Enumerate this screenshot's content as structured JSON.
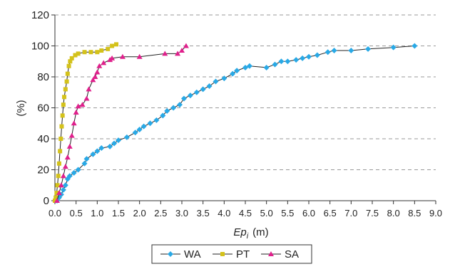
{
  "chart_data": {
    "type": "scatter",
    "xlabel": "Ep",
    "xlabel_sub": "i",
    "xlabel_unit": "(m)",
    "ylabel": "(%)",
    "xlim": [
      0,
      9
    ],
    "ylim": [
      0,
      120
    ],
    "xticks": [
      "0.0",
      "0.5",
      "1.0",
      "1.5",
      "2.0",
      "2.5",
      "3.0",
      "3.5",
      "4.0",
      "4.5",
      "5.0",
      "5.5",
      "6.0",
      "6.5",
      "7.0",
      "7.5",
      "8.0",
      "8.5",
      "9.0"
    ],
    "yticks": [
      "0",
      "20",
      "40",
      "60",
      "80",
      "100",
      "120"
    ],
    "grid": "horizontal-dashed",
    "legend_position": "bottom",
    "series": [
      {
        "name": "WA",
        "color": "#29a9e6",
        "marker": "diamond",
        "points": [
          [
            0.05,
            0
          ],
          [
            0.1,
            2
          ],
          [
            0.15,
            4
          ],
          [
            0.2,
            7
          ],
          [
            0.25,
            10
          ],
          [
            0.3,
            14
          ],
          [
            0.35,
            16
          ],
          [
            0.45,
            18
          ],
          [
            0.55,
            20
          ],
          [
            0.7,
            24
          ],
          [
            0.75,
            27
          ],
          [
            0.9,
            30
          ],
          [
            1.0,
            32
          ],
          [
            1.1,
            34
          ],
          [
            1.3,
            35
          ],
          [
            1.4,
            37
          ],
          [
            1.5,
            39
          ],
          [
            1.7,
            41
          ],
          [
            1.9,
            44
          ],
          [
            2.0,
            46
          ],
          [
            2.1,
            48
          ],
          [
            2.25,
            50
          ],
          [
            2.4,
            52
          ],
          [
            2.55,
            55
          ],
          [
            2.65,
            58
          ],
          [
            2.8,
            60
          ],
          [
            2.95,
            62
          ],
          [
            3.05,
            66
          ],
          [
            3.2,
            68
          ],
          [
            3.35,
            70
          ],
          [
            3.5,
            72
          ],
          [
            3.65,
            74
          ],
          [
            3.8,
            77
          ],
          [
            4.0,
            79
          ],
          [
            4.2,
            82
          ],
          [
            4.3,
            84
          ],
          [
            4.5,
            86
          ],
          [
            4.6,
            87
          ],
          [
            5.0,
            86
          ],
          [
            5.2,
            88
          ],
          [
            5.35,
            90
          ],
          [
            5.5,
            90
          ],
          [
            5.7,
            91
          ],
          [
            5.85,
            92
          ],
          [
            6.0,
            93
          ],
          [
            6.2,
            94
          ],
          [
            6.45,
            96
          ],
          [
            6.6,
            97
          ],
          [
            7.0,
            97
          ],
          [
            7.4,
            98
          ],
          [
            8.0,
            99
          ],
          [
            8.5,
            100
          ]
        ]
      },
      {
        "name": "PT",
        "color": "#d4c21a",
        "marker": "square",
        "points": [
          [
            0.0,
            0
          ],
          [
            0.02,
            2
          ],
          [
            0.04,
            5
          ],
          [
            0.06,
            10
          ],
          [
            0.08,
            16
          ],
          [
            0.1,
            24
          ],
          [
            0.12,
            32
          ],
          [
            0.14,
            40
          ],
          [
            0.16,
            48
          ],
          [
            0.18,
            55
          ],
          [
            0.2,
            62
          ],
          [
            0.22,
            67
          ],
          [
            0.25,
            72
          ],
          [
            0.28,
            77
          ],
          [
            0.3,
            82
          ],
          [
            0.33,
            87
          ],
          [
            0.36,
            90
          ],
          [
            0.4,
            92
          ],
          [
            0.48,
            94
          ],
          [
            0.55,
            95
          ],
          [
            0.7,
            96
          ],
          [
            0.85,
            96
          ],
          [
            1.0,
            96
          ],
          [
            1.1,
            97
          ],
          [
            1.25,
            98
          ],
          [
            1.35,
            100
          ],
          [
            1.45,
            101
          ]
        ]
      },
      {
        "name": "SA",
        "color": "#e0208c",
        "marker": "triangle",
        "points": [
          [
            0.05,
            0
          ],
          [
            0.1,
            5
          ],
          [
            0.15,
            10
          ],
          [
            0.2,
            16
          ],
          [
            0.25,
            22
          ],
          [
            0.3,
            28
          ],
          [
            0.35,
            35
          ],
          [
            0.4,
            42
          ],
          [
            0.45,
            50
          ],
          [
            0.5,
            57
          ],
          [
            0.55,
            61
          ],
          [
            0.65,
            62
          ],
          [
            0.75,
            66
          ],
          [
            0.8,
            72
          ],
          [
            0.9,
            78
          ],
          [
            0.95,
            80
          ],
          [
            1.0,
            83
          ],
          [
            1.05,
            87
          ],
          [
            1.15,
            89
          ],
          [
            1.3,
            91
          ],
          [
            1.35,
            92
          ],
          [
            1.6,
            93
          ],
          [
            2.0,
            93
          ],
          [
            2.6,
            95
          ],
          [
            2.9,
            95
          ],
          [
            3.0,
            97
          ],
          [
            3.1,
            100
          ]
        ]
      }
    ]
  }
}
